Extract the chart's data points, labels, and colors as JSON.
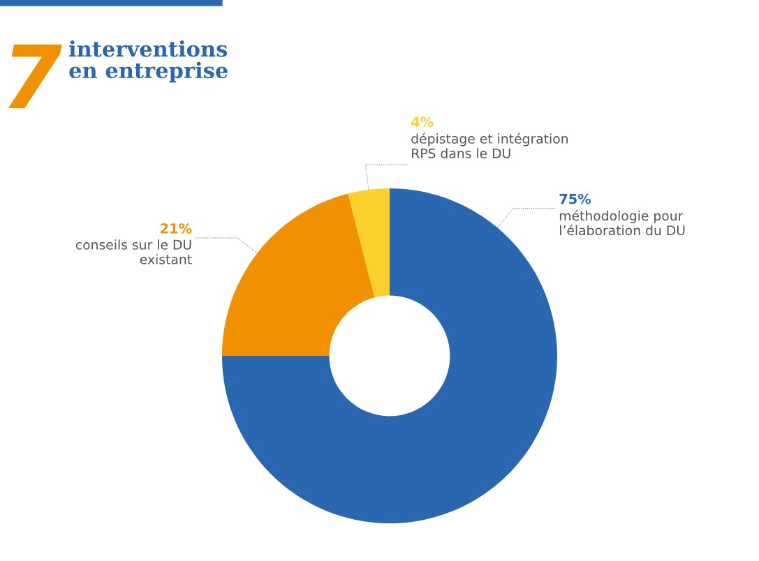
{
  "chart_data": {
    "type": "donut",
    "title": "7",
    "subtitle": "interventions\nen entreprise",
    "categories": [
      "méthodologie pour\nl’élaboration du DU",
      "conseils sur le DU\nexistant",
      "dépistage et intégration\nRPS dans le DU"
    ],
    "values": [
      75,
      21,
      4
    ],
    "value_labels": [
      "75%",
      "21%",
      "4%"
    ],
    "colors": [
      "#2a67b1",
      "#f29100",
      "#fdd12b"
    ]
  }
}
